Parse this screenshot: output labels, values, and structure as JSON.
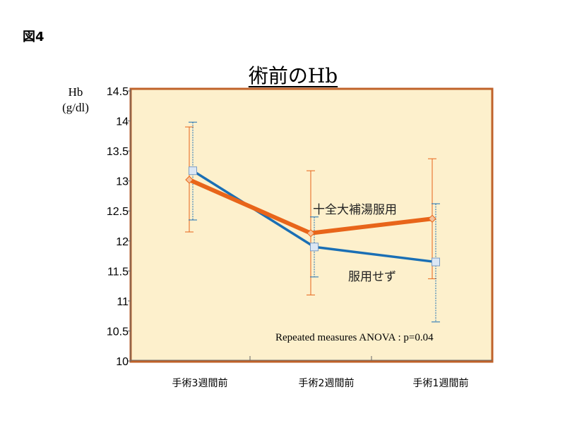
{
  "figure_label": "図4",
  "chart_data": {
    "type": "line",
    "title": "術前のHb",
    "ylabel": "Hb\n(g/dl)",
    "xlabel": "",
    "categories": [
      "手術3週間前",
      "手術2週間前",
      "手術1週間前"
    ],
    "ylim": [
      10,
      14.5
    ],
    "yticks": [
      "10",
      "10.5",
      "11",
      "11.5",
      "12",
      "12.5",
      "13",
      "13.5",
      "14",
      "14.5"
    ],
    "grid": false,
    "series": [
      {
        "name": "十全大補湯服用",
        "values": [
          13.02,
          12.13,
          12.37
        ],
        "error_upper": [
          13.9,
          13.17,
          13.37
        ],
        "error_lower": [
          12.15,
          11.1,
          11.37
        ],
        "color": "#e8651a",
        "marker": "diamond"
      },
      {
        "name": "服用せず",
        "values": [
          13.17,
          11.9,
          11.65
        ],
        "error_upper": [
          13.98,
          12.4,
          12.62
        ],
        "error_lower": [
          12.35,
          11.4,
          10.65
        ],
        "color": "#1a6fb5",
        "marker": "square"
      }
    ],
    "annotation": "Repeated  measures ANOVA : p=0.04",
    "colors": {
      "plot_background": "#fdf0cc",
      "frame": "#c0622a"
    }
  }
}
